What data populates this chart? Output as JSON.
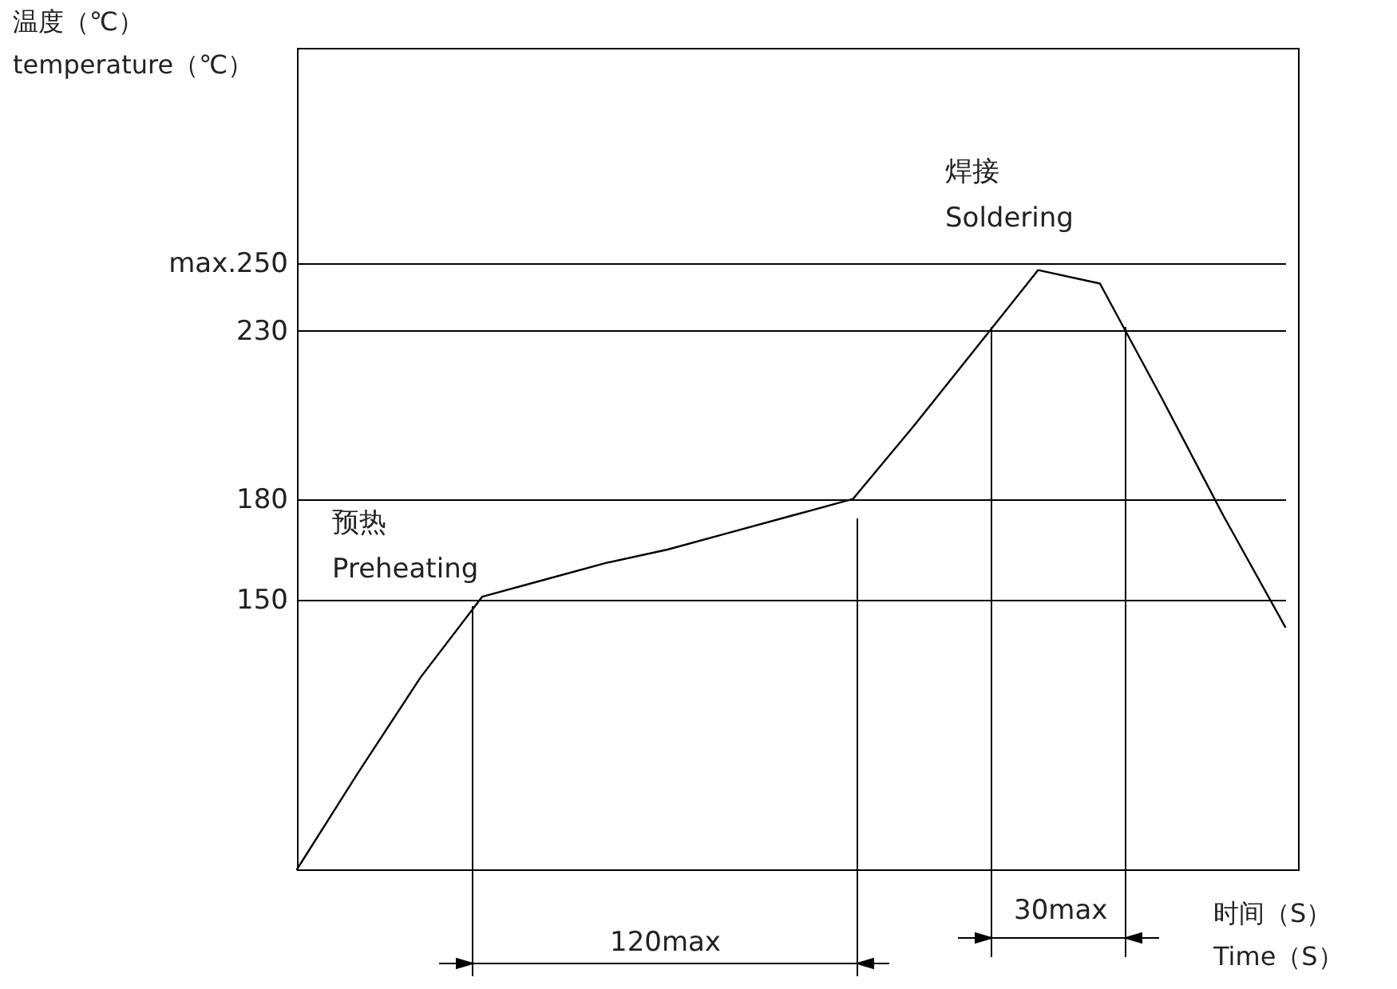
{
  "chart_data": {
    "type": "line",
    "ylabel": "温度（℃）\ntemperature（℃）",
    "xlabel": "时间（S）\nTime（S）",
    "categories": [
      null,
      null,
      null,
      null,
      null,
      null,
      null,
      null,
      null,
      null,
      null,
      null,
      null,
      null,
      null,
      null,
      null
    ],
    "series": [
      {
        "color": "#000000",
        "values": [
          70,
          99,
          127,
          151,
          156,
          161,
          165,
          170,
          175,
          180,
          202,
          225,
          248,
          244,
          210,
          175,
          142
        ]
      }
    ],
    "ylim": [
      70,
      314
    ],
    "yticks": [
      150,
      180,
      230,
      {
        "value": 250,
        "label": "max.250"
      }
    ],
    "grid": "y",
    "legend": false,
    "marker": "none",
    "line_style": "solid",
    "tick_labels": "y",
    "annotations": [
      "焊接\nSoldering",
      "预热\nPreheating",
      "120max",
      "30max"
    ]
  }
}
